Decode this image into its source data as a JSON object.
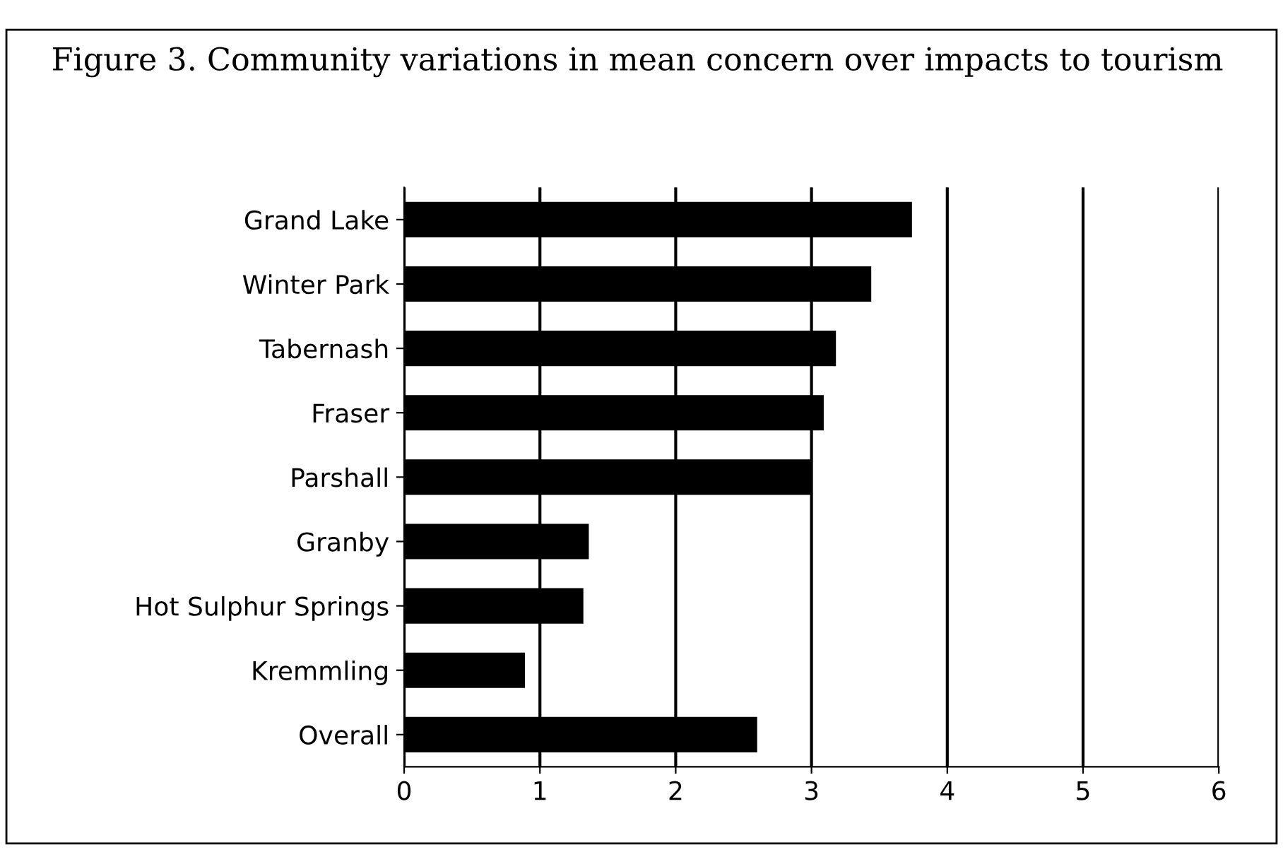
{
  "chart_data": {
    "type": "bar",
    "orientation": "horizontal",
    "title": "Figure 3. Community variations in mean concern over impacts to tourism",
    "categories": [
      "Grand Lake",
      "Winter Park",
      "Tabernash",
      "Fraser",
      "Parshall",
      "Granby",
      "Hot Sulphur Springs",
      "Kremmling",
      "Overall"
    ],
    "values": [
      3.74,
      3.44,
      3.18,
      3.09,
      3.0,
      1.36,
      1.32,
      0.89,
      2.6
    ],
    "color": "#000000",
    "xlim": [
      0,
      6
    ],
    "xticks": [
      0,
      1,
      2,
      3,
      4,
      5,
      6
    ],
    "grid": "x"
  }
}
